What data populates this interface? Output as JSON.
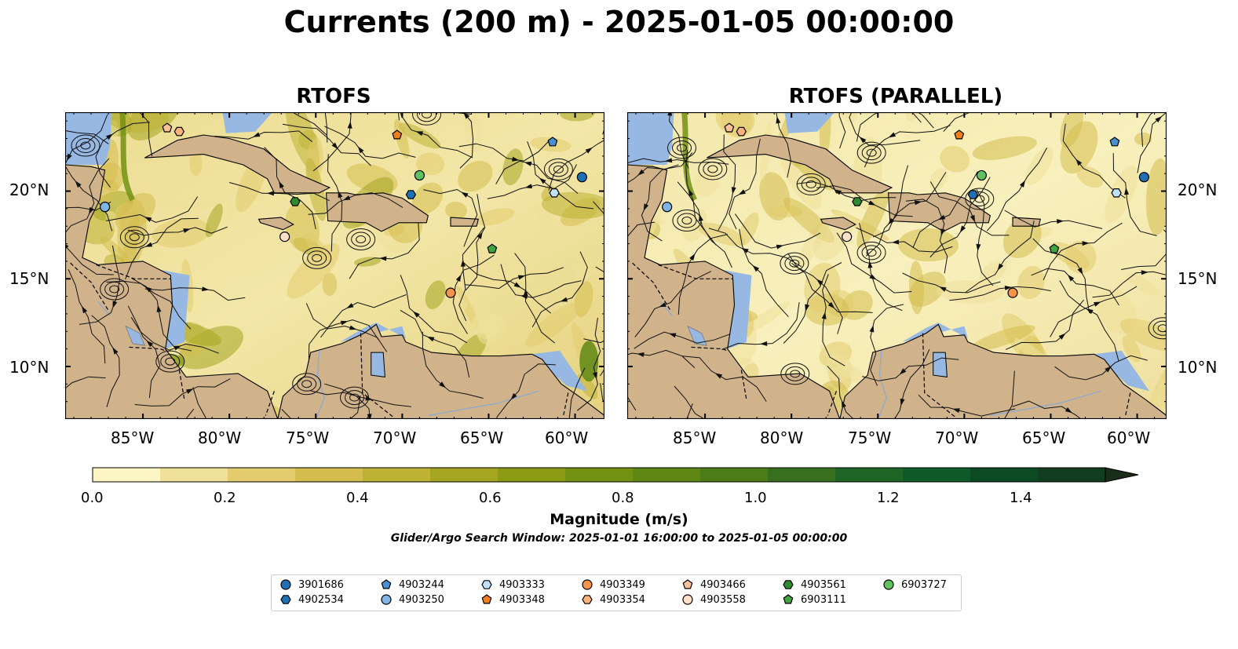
{
  "title": "Currents (200 m) - 2025-01-05 00:00:00",
  "panels": [
    {
      "title": "RTOFS"
    },
    {
      "title": "RTOFS (PARALLEL)"
    }
  ],
  "axes": {
    "lat_labels": [
      "20°N",
      "15°N",
      "10°N"
    ],
    "lat_values": [
      20,
      15,
      10
    ],
    "lon_labels": [
      "85°W",
      "80°W",
      "75°W",
      "70°W",
      "65°W",
      "60°W"
    ],
    "lon_values": [
      -85,
      -80,
      -75,
      -70,
      -65,
      -60
    ],
    "lon_range": [
      -89.5,
      -58.3
    ],
    "lat_range": [
      7.0,
      24.5
    ]
  },
  "colorbar": {
    "label": "Magnitude (m/s)",
    "ticks": [
      "0.0",
      "0.2",
      "0.4",
      "0.6",
      "0.8",
      "1.0",
      "1.2",
      "1.4"
    ],
    "range": [
      0.0,
      1.5
    ],
    "extend": "max",
    "colors": [
      "#fcf6c4",
      "#efe09a",
      "#e2cc6e",
      "#d4bd4e",
      "#bdb234",
      "#a4a620",
      "#8b9b13",
      "#739112",
      "#5e8714",
      "#4b7c18",
      "#386f1f",
      "#1f6525",
      "#0e5a29",
      "#0c4a23",
      "#133d20",
      "#1a2d18"
    ]
  },
  "search_window": "Glider/Argo Search Window: 2025-01-01 16:00:00 to 2025-01-05 00:00:00",
  "legend": [
    {
      "id": "3901686",
      "shape": "circle",
      "color": "#1f6fb4"
    },
    {
      "id": "4902534",
      "shape": "hexagon",
      "color": "#1f6fb4"
    },
    {
      "id": "4903244",
      "shape": "pentagon",
      "color": "#4a90d0"
    },
    {
      "id": "4903250",
      "shape": "circle",
      "color": "#7fb4e4"
    },
    {
      "id": "4903333",
      "shape": "hexagon",
      "color": "#c2e0f8"
    },
    {
      "id": "4903348",
      "shape": "pentagon",
      "color": "#f07e1c"
    },
    {
      "id": "4903349",
      "shape": "circle",
      "color": "#f4944a"
    },
    {
      "id": "4903354",
      "shape": "hexagon",
      "color": "#f9b27c"
    },
    {
      "id": "4903466",
      "shape": "pentagon",
      "color": "#fbc299"
    },
    {
      "id": "4903558",
      "shape": "circle",
      "color": "#fde0c8"
    },
    {
      "id": "4903561",
      "shape": "hexagon",
      "color": "#2e8b2e"
    },
    {
      "id": "6903111",
      "shape": "pentagon",
      "color": "#3fa43f"
    },
    {
      "id": "6903727",
      "shape": "circle",
      "color": "#5fc15f"
    }
  ],
  "floats": [
    {
      "id": "3901686",
      "lon": -59.6,
      "lat": 20.8
    },
    {
      "id": "4903244",
      "lon": -61.3,
      "lat": 22.8
    },
    {
      "id": "4903250",
      "lon": -87.2,
      "lat": 19.1
    },
    {
      "id": "4903333",
      "lon": -61.2,
      "lat": 19.9
    },
    {
      "id": "4903348",
      "lon": -70.3,
      "lat": 23.2
    },
    {
      "id": "4903349",
      "lon": -67.2,
      "lat": 14.2
    },
    {
      "id": "4903354",
      "lon": -82.9,
      "lat": 23.4
    },
    {
      "id": "4903466",
      "lon": -83.6,
      "lat": 23.6
    },
    {
      "id": "4903558",
      "lon": -76.8,
      "lat": 17.4
    },
    {
      "id": "4903561",
      "lon": -76.2,
      "lat": 19.4
    },
    {
      "id": "6903111",
      "lon": -64.8,
      "lat": 16.7
    },
    {
      "id": "6903727",
      "lon": -69.0,
      "lat": 20.9
    },
    {
      "id": "4902534",
      "lon": -69.5,
      "lat": 19.8
    }
  ]
}
